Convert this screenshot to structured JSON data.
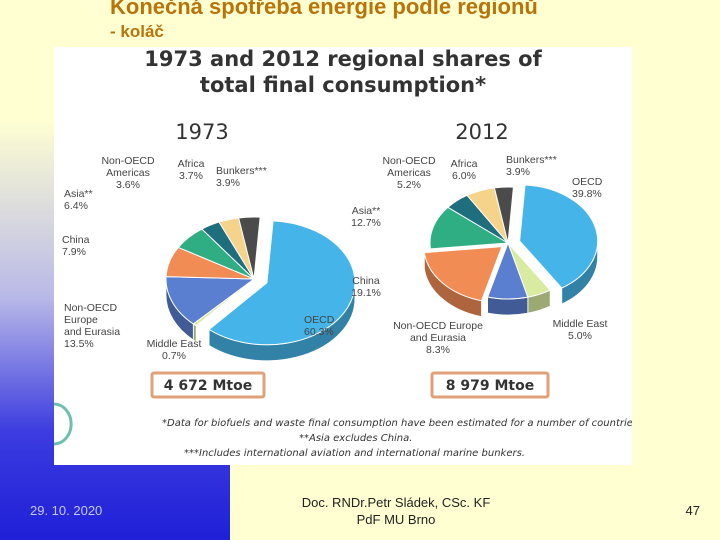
{
  "slide": {
    "title": "Konečná spotřeba energie podle regionů",
    "subtitle": "- koláč",
    "date": "29. 10. 2020",
    "author_line1": "Doc. RNDr.Petr Sládek, CSc. KF",
    "author_line2": "PdF MU Brno",
    "page": "47"
  },
  "figure": {
    "title_line1": "1973 and 2012 regional shares of",
    "title_line2": "total final consumption*",
    "footnote1": "*Data for biofuels and waste final consumption have been estimated for a number of countries.",
    "footnote2": "**Asia excludes China.",
    "footnote3": "***Includes international aviation and international marine bunkers."
  },
  "chart_data": [
    {
      "type": "pie",
      "title": "1973",
      "total_label": "4 672 Mtoe",
      "slices": [
        {
          "name": "OECD",
          "value": 60.3,
          "color": "#45b4e8"
        },
        {
          "name": "Middle East",
          "value": 0.7,
          "color": "#d9eba0"
        },
        {
          "name": "Non-OECD Europe and Eurasia",
          "value": 13.5,
          "color": "#5a7fd0"
        },
        {
          "name": "China",
          "value": 7.9,
          "color": "#f28c55"
        },
        {
          "name": "Asia**",
          "value": 6.4,
          "color": "#2fae84"
        },
        {
          "name": "Non-OECD Americas",
          "value": 3.6,
          "color": "#1f6e7d"
        },
        {
          "name": "Africa",
          "value": 3.7,
          "color": "#f5d38a"
        },
        {
          "name": "Bunkers***",
          "value": 3.9,
          "color": "#4b4b4b"
        }
      ],
      "labels": [
        {
          "lines": [
            "OECD",
            "60.3%"
          ]
        },
        {
          "lines": [
            "Middle East",
            "0.7%"
          ]
        },
        {
          "lines": [
            "Non-OECD",
            "Europe",
            "and Eurasia",
            "13.5%"
          ]
        },
        {
          "lines": [
            "China",
            "7.9%"
          ]
        },
        {
          "lines": [
            "Asia**",
            "6.4%"
          ]
        },
        {
          "lines": [
            "Non-OECD",
            "Americas",
            "3.6%"
          ]
        },
        {
          "lines": [
            "Africa",
            "3.7%"
          ]
        },
        {
          "lines": [
            "Bunkers***",
            "3.9%"
          ]
        }
      ]
    },
    {
      "type": "pie",
      "title": "2012",
      "total_label": "8 979 Mtoe",
      "slices": [
        {
          "name": "OECD",
          "value": 39.8,
          "color": "#45b4e8"
        },
        {
          "name": "Middle East",
          "value": 5.0,
          "color": "#d9eba0"
        },
        {
          "name": "Non-OECD Europe and Eurasia",
          "value": 8.3,
          "color": "#5a7fd0"
        },
        {
          "name": "China",
          "value": 19.1,
          "color": "#f28c55"
        },
        {
          "name": "Asia**",
          "value": 12.7,
          "color": "#2fae84"
        },
        {
          "name": "Non-OECD Americas",
          "value": 5.2,
          "color": "#1f6e7d"
        },
        {
          "name": "Africa",
          "value": 6.0,
          "color": "#f5d38a"
        },
        {
          "name": "Bunkers***",
          "value": 3.9,
          "color": "#4b4b4b"
        }
      ],
      "labels": [
        {
          "lines": [
            "OECD",
            "39.8%"
          ]
        },
        {
          "lines": [
            "Middle East",
            "5.0%"
          ]
        },
        {
          "lines": [
            "Non-OECD Europe",
            "and Eurasia",
            "8.3%"
          ]
        },
        {
          "lines": [
            "China",
            "19.1%"
          ]
        },
        {
          "lines": [
            "Asia**",
            "12.7%"
          ]
        },
        {
          "lines": [
            "Non-OECD",
            "Americas",
            "5.2%"
          ]
        },
        {
          "lines": [
            "Africa",
            "6.0%"
          ]
        },
        {
          "lines": [
            "Bunkers***",
            "3.9%"
          ]
        }
      ]
    }
  ]
}
